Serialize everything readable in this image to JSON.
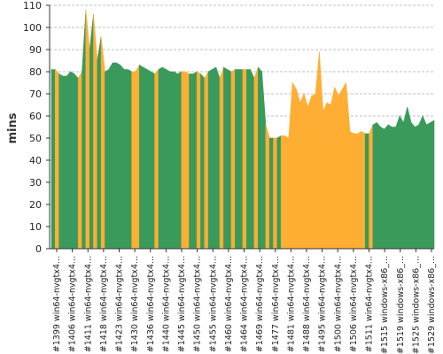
{
  "chart_data": {
    "type": "area",
    "title": "",
    "xlabel": "",
    "ylabel": "mins",
    "ylim": [
      0,
      110
    ],
    "yticks": [
      0,
      10,
      20,
      30,
      40,
      50,
      60,
      70,
      80,
      90,
      100,
      110
    ],
    "grid": true,
    "colors": {
      "pass": "#3a9a5b",
      "fail": "#ffae34",
      "grid": "#aaaaaa",
      "axis": "#333333"
    },
    "x_tick_labels": [
      "#1399 win64-nvgtx4...",
      "#1406 win64-nvgtx4...",
      "#1411 win64-nvgtx4...",
      "#1418 win64-nvgtx4...",
      "#1423 win64-nvgtx4...",
      "#1430 win64-nvgtx4...",
      "#1436 win64-nvgtx4...",
      "#1440 win64-nvgtx4...",
      "#1445 win64-nvgtx4...",
      "#1450 win64-nvgtx4...",
      "#1455 win64-nvgtx4...",
      "#1460 win64-nvgtx4...",
      "#1464 win64-nvgtx4...",
      "#1469 win64-nvgtx4...",
      "#1477 win64-nvgtx4...",
      "#1481 win64-nvgtx4...",
      "#1488 win64-nvgtx4...",
      "#1495 win64-nvgtx4...",
      "#1500 win64-nvgtx4...",
      "#1506 win64-nvgtx4...",
      "#1511 win64-nvgtx4...",
      "#1515 windows-x86_...",
      "#1519 windows-x86_...",
      "#1525 windows-x86_...",
      "#1529 windows-x86_..."
    ],
    "points": [
      {
        "y": 81,
        "status": "pass"
      },
      {
        "y": 81,
        "status": "fail"
      },
      {
        "y": 79,
        "status": "pass"
      },
      {
        "y": 78,
        "status": "pass"
      },
      {
        "y": 78,
        "status": "pass"
      },
      {
        "y": 80,
        "status": "pass"
      },
      {
        "y": 79,
        "status": "pass"
      },
      {
        "y": 77,
        "status": "fail"
      },
      {
        "y": 80,
        "status": "pass"
      },
      {
        "y": 108,
        "status": "fail"
      },
      {
        "y": 90,
        "status": "pass"
      },
      {
        "y": 106,
        "status": "fail"
      },
      {
        "y": 85,
        "status": "pass"
      },
      {
        "y": 96,
        "status": "fail"
      },
      {
        "y": 80,
        "status": "pass"
      },
      {
        "y": 81,
        "status": "pass"
      },
      {
        "y": 84,
        "status": "pass"
      },
      {
        "y": 84,
        "status": "pass"
      },
      {
        "y": 83,
        "status": "pass"
      },
      {
        "y": 81,
        "status": "pass"
      },
      {
        "y": 81,
        "status": "pass"
      },
      {
        "y": 80,
        "status": "fail"
      },
      {
        "y": 80,
        "status": "fail"
      },
      {
        "y": 83,
        "status": "pass"
      },
      {
        "y": 82,
        "status": "pass"
      },
      {
        "y": 81,
        "status": "pass"
      },
      {
        "y": 80,
        "status": "pass"
      },
      {
        "y": 79,
        "status": "fail"
      },
      {
        "y": 81,
        "status": "pass"
      },
      {
        "y": 82,
        "status": "pass"
      },
      {
        "y": 81,
        "status": "pass"
      },
      {
        "y": 80,
        "status": "pass"
      },
      {
        "y": 80,
        "status": "pass"
      },
      {
        "y": 79,
        "status": "pass"
      },
      {
        "y": 80,
        "status": "fail"
      },
      {
        "y": 80,
        "status": "fail"
      },
      {
        "y": 79,
        "status": "pass"
      },
      {
        "y": 79,
        "status": "pass"
      },
      {
        "y": 80,
        "status": "fail"
      },
      {
        "y": 79,
        "status": "pass"
      },
      {
        "y": 77,
        "status": "fail"
      },
      {
        "y": 80,
        "status": "pass"
      },
      {
        "y": 81,
        "status": "pass"
      },
      {
        "y": 82,
        "status": "pass"
      },
      {
        "y": 77,
        "status": "fail"
      },
      {
        "y": 82,
        "status": "pass"
      },
      {
        "y": 81,
        "status": "pass"
      },
      {
        "y": 80,
        "status": "fail"
      },
      {
        "y": 81,
        "status": "pass"
      },
      {
        "y": 81,
        "status": "pass"
      },
      {
        "y": 81,
        "status": "fail"
      },
      {
        "y": 81,
        "status": "pass"
      },
      {
        "y": 81,
        "status": "pass"
      },
      {
        "y": 77,
        "status": "fail"
      },
      {
        "y": 82,
        "status": "pass"
      },
      {
        "y": 80,
        "status": "pass"
      },
      {
        "y": 56,
        "status": "fail"
      },
      {
        "y": 50,
        "status": "pass"
      },
      {
        "y": 50,
        "status": "fail"
      },
      {
        "y": 50,
        "status": "pass"
      },
      {
        "y": 51,
        "status": "fail"
      },
      {
        "y": 51,
        "status": "fail"
      },
      {
        "y": 50,
        "status": "fail"
      },
      {
        "y": 75,
        "status": "fail"
      },
      {
        "y": 72,
        "status": "fail"
      },
      {
        "y": 66,
        "status": "fail"
      },
      {
        "y": 70,
        "status": "fail"
      },
      {
        "y": 64,
        "status": "fail"
      },
      {
        "y": 69,
        "status": "fail"
      },
      {
        "y": 70,
        "status": "fail"
      },
      {
        "y": 89,
        "status": "fail"
      },
      {
        "y": 62,
        "status": "fail"
      },
      {
        "y": 66,
        "status": "fail"
      },
      {
        "y": 65,
        "status": "fail"
      },
      {
        "y": 73,
        "status": "fail"
      },
      {
        "y": 69,
        "status": "fail"
      },
      {
        "y": 72,
        "status": "fail"
      },
      {
        "y": 75,
        "status": "fail"
      },
      {
        "y": 53,
        "status": "fail"
      },
      {
        "y": 52,
        "status": "fail"
      },
      {
        "y": 52,
        "status": "fail"
      },
      {
        "y": 53,
        "status": "fail"
      },
      {
        "y": 52,
        "status": "pass"
      },
      {
        "y": 52,
        "status": "fail"
      },
      {
        "y": 56,
        "status": "pass"
      },
      {
        "y": 57,
        "status": "pass"
      },
      {
        "y": 55,
        "status": "pass"
      },
      {
        "y": 54,
        "status": "pass"
      },
      {
        "y": 56,
        "status": "pass"
      },
      {
        "y": 55,
        "status": "pass"
      },
      {
        "y": 55,
        "status": "pass"
      },
      {
        "y": 60,
        "status": "pass"
      },
      {
        "y": 57,
        "status": "pass"
      },
      {
        "y": 64,
        "status": "pass"
      },
      {
        "y": 57,
        "status": "pass"
      },
      {
        "y": 55,
        "status": "pass"
      },
      {
        "y": 56,
        "status": "pass"
      },
      {
        "y": 60,
        "status": "pass"
      },
      {
        "y": 56,
        "status": "pass"
      },
      {
        "y": 57,
        "status": "pass"
      },
      {
        "y": 58,
        "status": "pass"
      }
    ]
  }
}
